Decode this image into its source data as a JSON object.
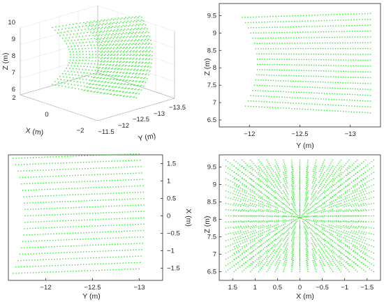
{
  "colors": {
    "points": "#22ee22",
    "axis": "#262626",
    "grid": "#e6e6e6",
    "box": "#b0b0b0"
  },
  "chart_data": [
    {
      "panel": "3d-view",
      "type": "scatter",
      "view": "3d",
      "xlabel": "X (m)",
      "ylabel": "Y (m)",
      "zlabel": "Z (m)",
      "x_ticks": [
        "2",
        "0",
        "−2"
      ],
      "y_ticks": [
        "−11.5",
        "−12",
        "−12.5",
        "−13",
        "−13.5"
      ],
      "z_ticks": [
        "6",
        "7",
        "8",
        "9",
        "10"
      ],
      "xlim": [
        -2,
        2
      ],
      "ylim": [
        -13.5,
        -11.5
      ],
      "zlim": [
        6,
        10
      ],
      "grid": true
    },
    {
      "panel": "y-z-view",
      "type": "scatter",
      "xlabel": "Y (m)",
      "ylabel": "Z (m)",
      "x_ticks": [
        "−12",
        "−12.5",
        "−13"
      ],
      "y_ticks": [
        "6.5",
        "7",
        "7.5",
        "8",
        "8.5",
        "9",
        "9.5"
      ],
      "xlim": [
        -11.7,
        -13.3
      ],
      "ylim": [
        6.3,
        9.85
      ],
      "grid": false
    },
    {
      "panel": "y-x-view",
      "type": "scatter",
      "xlabel": "Y (m)",
      "ylabel": "X (m)",
      "y_axis_side": "right",
      "x_ticks": [
        "−12",
        "−12.5",
        "−13"
      ],
      "y_ticks": [
        "1.5",
        "1",
        "0.5",
        "0",
        "−0.5",
        "−1",
        "−1.5"
      ],
      "xlim": [
        -11.6,
        -13.25
      ],
      "ylim": [
        -1.85,
        1.75
      ],
      "grid": false
    },
    {
      "panel": "x-z-view",
      "type": "scatter",
      "xlabel": "X (m)",
      "ylabel": "Z (m)",
      "x_ticks": [
        "1.5",
        "1",
        "0.5",
        "0",
        "−0.5",
        "−1",
        "−1.5"
      ],
      "y_ticks": [
        "6.5",
        "7",
        "7.5",
        "8",
        "8.5",
        "9",
        "9.5"
      ],
      "xlim": [
        1.8,
        -1.8
      ],
      "ylim": [
        6.25,
        9.85
      ],
      "grid": false
    }
  ]
}
